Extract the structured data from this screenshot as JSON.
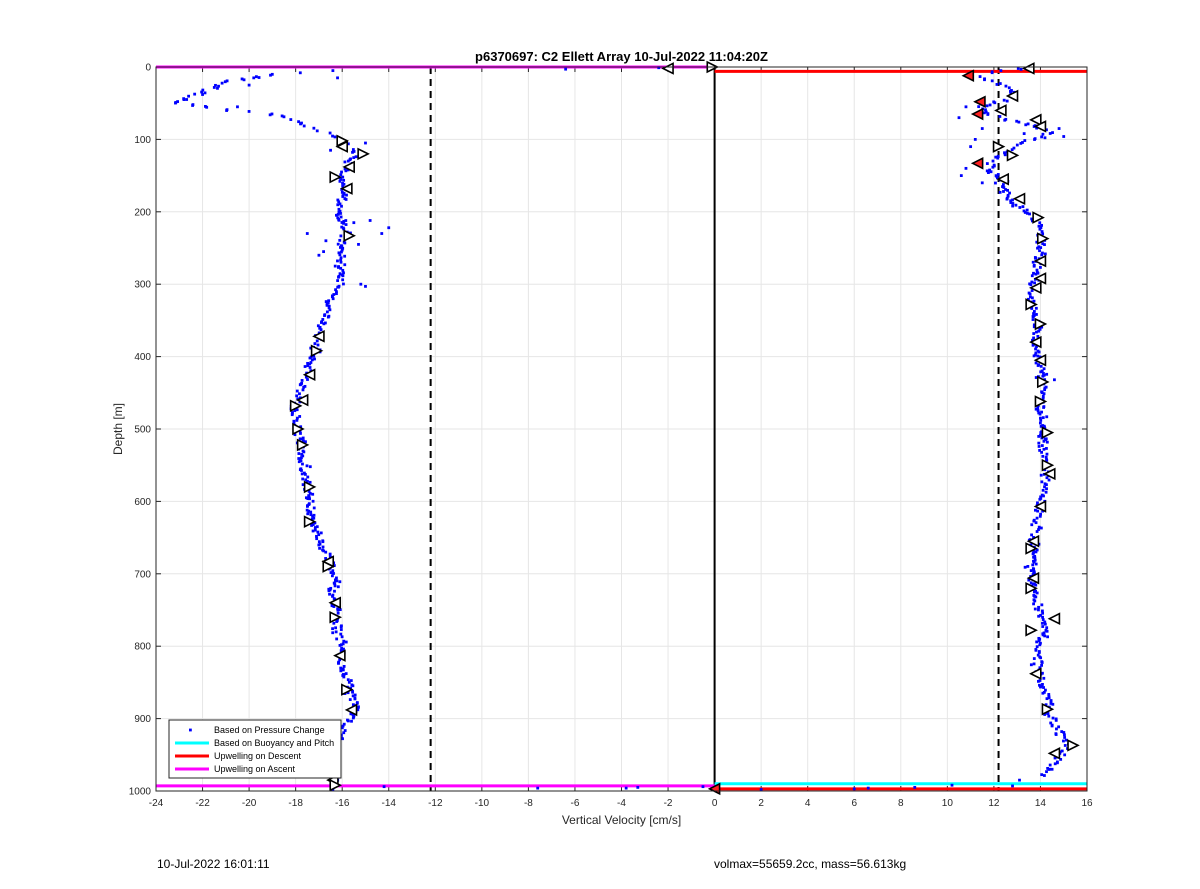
{
  "chart_data": {
    "type": "scatter",
    "title": "p6370697: C2 Ellett Array 10-Jul-2022 11:04:20Z",
    "xlabel": "Vertical Velocity [cm/s]",
    "ylabel": "Depth [m]",
    "xlim": [
      -24,
      16
    ],
    "ylim": [
      0,
      1000
    ],
    "y_reversed": true,
    "grid": true,
    "xticks": [
      -24,
      -22,
      -20,
      -18,
      -16,
      -14,
      -12,
      -10,
      -8,
      -6,
      -4,
      -2,
      0,
      2,
      4,
      6,
      8,
      10,
      12,
      14,
      16
    ],
    "yticks": [
      0,
      100,
      200,
      300,
      400,
      500,
      600,
      700,
      800,
      900,
      1000
    ],
    "legend_position": "bottom-left",
    "legend": [
      {
        "label": "Based on Pressure Change",
        "color": "#0000ff",
        "style": "dot"
      },
      {
        "label": "Based on Buoyancy and Pitch",
        "color": "#00ffff",
        "style": "line"
      },
      {
        "label": "Upwelling on Descent",
        "color": "#ff0000",
        "style": "line"
      },
      {
        "label": "Upwelling on Ascent",
        "color": "#ff00ff",
        "style": "line"
      }
    ],
    "colors": {
      "pressure": "#0000ff",
      "buoyancy": "#00ffff",
      "descent": "#ff0000",
      "ascent": "#ff00ff",
      "marker_fill": "#ffffff",
      "marker_edge": "#000000",
      "marker_red": "#ff2020"
    },
    "vertical_lines": [
      {
        "x": -12.2,
        "style": "dashed",
        "color": "#000000"
      },
      {
        "x": 0,
        "style": "solid",
        "color": "#000000"
      },
      {
        "x": 12.2,
        "style": "dashed",
        "color": "#000000"
      }
    ],
    "horizontal_segments": [
      {
        "series": "ascent",
        "y": 0,
        "x": [
          -24,
          0
        ]
      },
      {
        "series": "descent",
        "y": 6,
        "x": [
          0,
          16
        ]
      },
      {
        "series": "buoyancy",
        "y": 990,
        "x": [
          0,
          16
        ]
      },
      {
        "series": "descent",
        "y": 997,
        "x": [
          0,
          16
        ]
      },
      {
        "series": "ascent",
        "y": 993,
        "x": [
          -24,
          0
        ]
      }
    ],
    "pressure_profiles": {
      "ascent": [
        [
          -19.0,
          10
        ],
        [
          -21.0,
          20
        ],
        [
          -23.2,
          50
        ],
        [
          -21.0,
          58
        ],
        [
          -19.0,
          65
        ],
        [
          -18.0,
          75
        ],
        [
          -17.3,
          85
        ],
        [
          -16.5,
          92
        ],
        [
          -16.2,
          100
        ],
        [
          -15.7,
          110
        ],
        [
          -15.2,
          120
        ],
        [
          -15.6,
          130
        ],
        [
          -15.8,
          140
        ],
        [
          -16.2,
          155
        ],
        [
          -16.0,
          170
        ],
        [
          -16.1,
          190
        ],
        [
          -16.0,
          210
        ],
        [
          -15.9,
          230
        ],
        [
          -16.1,
          250
        ],
        [
          -16.0,
          270
        ],
        [
          -16.0,
          290
        ],
        [
          -16.2,
          305
        ],
        [
          -16.4,
          320
        ],
        [
          -16.7,
          345
        ],
        [
          -17.0,
          370
        ],
        [
          -17.1,
          390
        ],
        [
          -17.3,
          410
        ],
        [
          -17.5,
          425
        ],
        [
          -17.8,
          445
        ],
        [
          -18.0,
          465
        ],
        [
          -18.0,
          480
        ],
        [
          -17.9,
          500
        ],
        [
          -17.8,
          520
        ],
        [
          -17.7,
          540
        ],
        [
          -17.6,
          560
        ],
        [
          -17.5,
          580
        ],
        [
          -17.4,
          600
        ],
        [
          -17.3,
          620
        ],
        [
          -17.0,
          645
        ],
        [
          -16.8,
          665
        ],
        [
          -16.5,
          685
        ],
        [
          -16.4,
          705
        ],
        [
          -16.4,
          725
        ],
        [
          -16.3,
          745
        ],
        [
          -16.2,
          765
        ],
        [
          -16.1,
          790
        ],
        [
          -16.1,
          815
        ],
        [
          -15.8,
          840
        ],
        [
          -15.6,
          865
        ],
        [
          -15.4,
          890
        ],
        [
          -15.8,
          910
        ],
        [
          -16.3,
          935
        ],
        [
          -16.4,
          960
        ],
        [
          -16.3,
          992
        ]
      ],
      "descent": [
        [
          13.2,
          3
        ],
        [
          11.0,
          10
        ],
        [
          12.0,
          20
        ],
        [
          13.0,
          35
        ],
        [
          12.5,
          45
        ],
        [
          11.5,
          55
        ],
        [
          11.8,
          65
        ],
        [
          13.0,
          75
        ],
        [
          14.5,
          90
        ],
        [
          13.2,
          105
        ],
        [
          12.5,
          120
        ],
        [
          11.8,
          130
        ],
        [
          12.0,
          145
        ],
        [
          12.2,
          160
        ],
        [
          12.5,
          175
        ],
        [
          13.0,
          190
        ],
        [
          13.5,
          200
        ],
        [
          13.9,
          215
        ],
        [
          14.0,
          230
        ],
        [
          14.0,
          245
        ],
        [
          13.9,
          260
        ],
        [
          13.9,
          280
        ],
        [
          13.7,
          300
        ],
        [
          13.6,
          320
        ],
        [
          13.7,
          340
        ],
        [
          13.9,
          360
        ],
        [
          13.8,
          380
        ],
        [
          13.9,
          400
        ],
        [
          14.0,
          420
        ],
        [
          14.1,
          440
        ],
        [
          14.0,
          460
        ],
        [
          14.1,
          480
        ],
        [
          14.2,
          500
        ],
        [
          14.1,
          520
        ],
        [
          14.2,
          545
        ],
        [
          14.3,
          565
        ],
        [
          14.1,
          585
        ],
        [
          14.0,
          605
        ],
        [
          13.8,
          630
        ],
        [
          13.7,
          655
        ],
        [
          13.7,
          675
        ],
        [
          13.6,
          695
        ],
        [
          13.6,
          715
        ],
        [
          13.8,
          735
        ],
        [
          14.0,
          755
        ],
        [
          14.2,
          775
        ],
        [
          14.0,
          795
        ],
        [
          13.9,
          815
        ],
        [
          13.9,
          835
        ],
        [
          14.1,
          855
        ],
        [
          14.3,
          875
        ],
        [
          14.5,
          900
        ],
        [
          14.8,
          920
        ],
        [
          15.3,
          935
        ],
        [
          14.9,
          950
        ],
        [
          14.5,
          965
        ],
        [
          14.1,
          980
        ]
      ]
    },
    "pressure_scatter_extra": [
      [
        -14.0,
        222
      ],
      [
        -14.3,
        230
      ],
      [
        -15.2,
        300
      ],
      [
        -15.0,
        303
      ],
      [
        -16.7,
        240
      ],
      [
        -16.8,
        255
      ],
      [
        -14.8,
        212
      ],
      [
        -15.3,
        245
      ],
      [
        -17.5,
        230
      ],
      [
        -17.0,
        260
      ],
      [
        -16.3,
        275
      ],
      [
        -15.5,
        215
      ],
      [
        -22.0,
        38
      ],
      [
        -22.8,
        45
      ],
      [
        -20.5,
        55
      ],
      [
        -19.8,
        15
      ],
      [
        -17.8,
        8
      ],
      [
        -16.4,
        5
      ],
      [
        -6.4,
        3
      ],
      [
        -2.4,
        1
      ],
      [
        -16.2,
        15
      ],
      [
        -20.0,
        25
      ],
      [
        -15.0,
        105
      ],
      [
        -16.5,
        115
      ],
      [
        -7.6,
        996
      ],
      [
        -3.8,
        996
      ],
      [
        -3.3,
        995
      ],
      [
        -0.5,
        994
      ],
      [
        -14.2,
        994
      ],
      [
        -16.4,
        998
      ],
      [
        2.0,
        998
      ],
      [
        6.0,
        997
      ],
      [
        6.6,
        996
      ],
      [
        8.6,
        995
      ],
      [
        10.2,
        992
      ],
      [
        12.8,
        993
      ],
      [
        14.6,
        432
      ],
      [
        15.0,
        96
      ],
      [
        14.8,
        85
      ],
      [
        10.8,
        55
      ],
      [
        11.0,
        110
      ],
      [
        10.6,
        150
      ],
      [
        11.2,
        100
      ],
      [
        12.3,
        5
      ],
      [
        11.5,
        85
      ],
      [
        10.8,
        140
      ],
      [
        12.6,
        158
      ],
      [
        11.5,
        160
      ],
      [
        13.3,
        92
      ],
      [
        10.5,
        70
      ],
      [
        13.1,
        985
      ],
      [
        14.5,
        970
      ]
    ],
    "buoyancy_markers": [
      {
        "x": -2.0,
        "y": 2,
        "dir": "left"
      },
      {
        "x": -0.1,
        "y": 0,
        "dir": "right"
      },
      {
        "x": -16.0,
        "y": 102,
        "dir": "right"
      },
      {
        "x": -16.0,
        "y": 110,
        "dir": "left"
      },
      {
        "x": -15.1,
        "y": 120,
        "dir": "right"
      },
      {
        "x": -15.7,
        "y": 138,
        "dir": "left"
      },
      {
        "x": -16.3,
        "y": 152,
        "dir": "right"
      },
      {
        "x": -15.8,
        "y": 168,
        "dir": "left"
      },
      {
        "x": -15.7,
        "y": 233,
        "dir": "right"
      },
      {
        "x": -17.0,
        "y": 372,
        "dir": "left"
      },
      {
        "x": -17.1,
        "y": 392,
        "dir": "right"
      },
      {
        "x": -17.4,
        "y": 425,
        "dir": "left"
      },
      {
        "x": -17.7,
        "y": 460,
        "dir": "left"
      },
      {
        "x": -18.0,
        "y": 468,
        "dir": "right"
      },
      {
        "x": -17.9,
        "y": 500,
        "dir": "right"
      },
      {
        "x": -17.7,
        "y": 522,
        "dir": "right"
      },
      {
        "x": -17.4,
        "y": 580,
        "dir": "right"
      },
      {
        "x": -17.4,
        "y": 628,
        "dir": "right"
      },
      {
        "x": -16.6,
        "y": 683,
        "dir": "left"
      },
      {
        "x": -16.6,
        "y": 690,
        "dir": "right"
      },
      {
        "x": -16.3,
        "y": 740,
        "dir": "left"
      },
      {
        "x": -16.3,
        "y": 760,
        "dir": "right"
      },
      {
        "x": -16.1,
        "y": 813,
        "dir": "left"
      },
      {
        "x": -15.8,
        "y": 860,
        "dir": "right"
      },
      {
        "x": -15.6,
        "y": 888,
        "dir": "left"
      },
      {
        "x": -16.3,
        "y": 937,
        "dir": "left"
      },
      {
        "x": -16.4,
        "y": 985,
        "dir": "left"
      },
      {
        "x": -16.3,
        "y": 992,
        "dir": "right"
      },
      {
        "x": 13.5,
        "y": 2,
        "dir": "left"
      },
      {
        "x": 12.8,
        "y": 40,
        "dir": "left"
      },
      {
        "x": 12.3,
        "y": 60,
        "dir": "left"
      },
      {
        "x": 13.8,
        "y": 73,
        "dir": "left"
      },
      {
        "x": 14.0,
        "y": 82,
        "dir": "left"
      },
      {
        "x": 12.2,
        "y": 110,
        "dir": "right"
      },
      {
        "x": 12.8,
        "y": 122,
        "dir": "right"
      },
      {
        "x": 12.4,
        "y": 155,
        "dir": "left"
      },
      {
        "x": 13.1,
        "y": 182,
        "dir": "left"
      },
      {
        "x": 13.9,
        "y": 208,
        "dir": "right"
      },
      {
        "x": 14.1,
        "y": 237,
        "dir": "right"
      },
      {
        "x": 14.0,
        "y": 268,
        "dir": "left"
      },
      {
        "x": 14.0,
        "y": 292,
        "dir": "left"
      },
      {
        "x": 13.8,
        "y": 305,
        "dir": "left"
      },
      {
        "x": 13.6,
        "y": 328,
        "dir": "right"
      },
      {
        "x": 14.0,
        "y": 355,
        "dir": "right"
      },
      {
        "x": 13.8,
        "y": 380,
        "dir": "left"
      },
      {
        "x": 14.0,
        "y": 405,
        "dir": "left"
      },
      {
        "x": 14.1,
        "y": 435,
        "dir": "right"
      },
      {
        "x": 14.0,
        "y": 462,
        "dir": "right"
      },
      {
        "x": 14.3,
        "y": 505,
        "dir": "right"
      },
      {
        "x": 14.3,
        "y": 550,
        "dir": "right"
      },
      {
        "x": 14.4,
        "y": 562,
        "dir": "left"
      },
      {
        "x": 14.0,
        "y": 607,
        "dir": "left"
      },
      {
        "x": 13.7,
        "y": 655,
        "dir": "left"
      },
      {
        "x": 13.6,
        "y": 665,
        "dir": "right"
      },
      {
        "x": 13.7,
        "y": 706,
        "dir": "left"
      },
      {
        "x": 13.6,
        "y": 720,
        "dir": "right"
      },
      {
        "x": 14.6,
        "y": 762,
        "dir": "left"
      },
      {
        "x": 13.6,
        "y": 778,
        "dir": "right"
      },
      {
        "x": 13.8,
        "y": 838,
        "dir": "left"
      },
      {
        "x": 14.3,
        "y": 887,
        "dir": "right"
      },
      {
        "x": 15.4,
        "y": 937,
        "dir": "right"
      },
      {
        "x": 14.6,
        "y": 948,
        "dir": "left"
      }
    ],
    "descent_red_markers": [
      {
        "x": 10.9,
        "y": 12,
        "dir": "left"
      },
      {
        "x": 11.4,
        "y": 48,
        "dir": "left"
      },
      {
        "x": 11.3,
        "y": 65,
        "dir": "left"
      },
      {
        "x": 11.3,
        "y": 133,
        "dir": "left"
      },
      {
        "x": 0.0,
        "y": 997,
        "dir": "left"
      }
    ]
  },
  "footer": {
    "timestamp": "10-Jul-2022 16:01:11",
    "summary": "volmax=55659.2cc, mass=56.613kg"
  }
}
